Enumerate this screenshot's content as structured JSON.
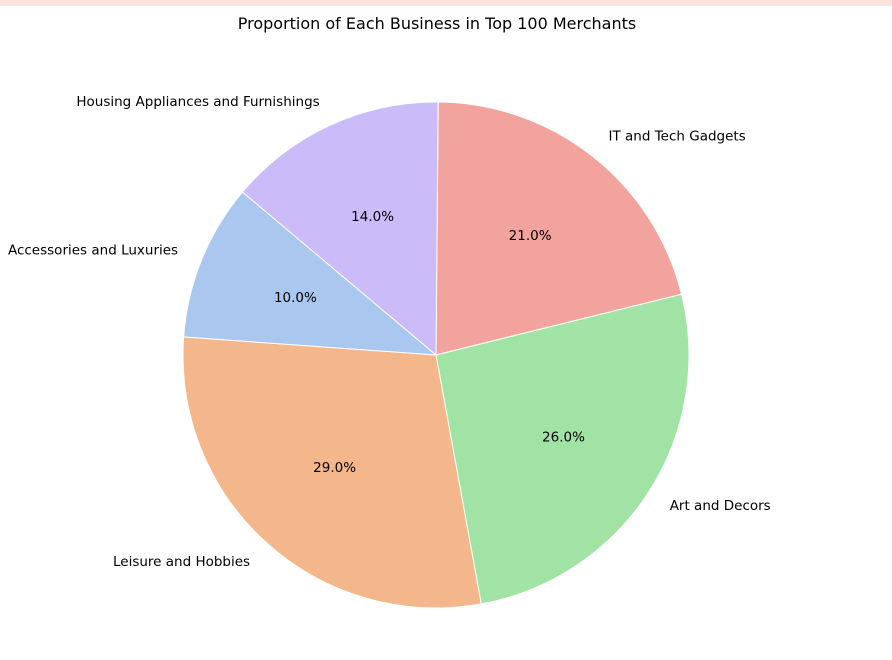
{
  "window": {
    "top_strip_color": "#fbe3e1"
  },
  "chart_data": {
    "type": "pie",
    "title": "Proportion of Each Business in Top 100 Merchants",
    "start_angle_deg": 89.5,
    "direction": "clockwise",
    "slices": [
      {
        "label": "IT and Tech Gadgets",
        "value": 21.0,
        "pct_label": "21.0%",
        "color": "#f3a39d"
      },
      {
        "label": "Art and Decors",
        "value": 26.0,
        "pct_label": "26.0%",
        "color": "#a1e3a5"
      },
      {
        "label": "Leisure and Hobbies",
        "value": 29.0,
        "pct_label": "29.0%",
        "color": "#f4b78b"
      },
      {
        "label": "Accessories and Luxuries",
        "value": 10.0,
        "pct_label": "10.0%",
        "color": "#a9c7ef"
      },
      {
        "label": "Housing Appliances and Furnishings",
        "value": 14.0,
        "pct_label": "14.0%",
        "color": "#cbbcf9"
      }
    ]
  }
}
